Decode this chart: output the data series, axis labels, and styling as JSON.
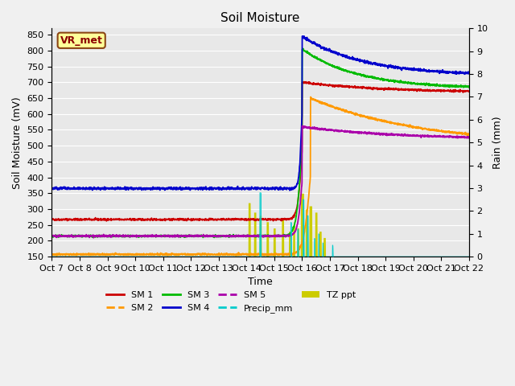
{
  "title": "Soil Moisture",
  "xlabel": "Time",
  "ylabel_left": "Soil Moisture (mV)",
  "ylabel_right": "Rain (mm)",
  "ylim_left": [
    150,
    870
  ],
  "ylim_right": [
    0.0,
    10.0
  ],
  "yticks_left": [
    150,
    200,
    250,
    300,
    350,
    400,
    450,
    500,
    550,
    600,
    650,
    700,
    750,
    800,
    850
  ],
  "yticks_right": [
    0.0,
    1.0,
    2.0,
    3.0,
    4.0,
    5.0,
    6.0,
    7.0,
    8.0,
    9.0,
    10.0
  ],
  "xtick_labels": [
    "Oct 7",
    "Oct 8",
    "Oct 9",
    "Oct 10",
    "Oct 11",
    "Oct 12",
    "Oct 13",
    "Oct 14",
    "Oct 15",
    "Oct 16",
    "Oct 17",
    "Oct 18",
    "Oct 19",
    "Oct 20",
    "Oct 21",
    "Oct 22"
  ],
  "bg_color": "#e8e8e8",
  "grid_color": "#ffffff",
  "annotation_text": "VR_met",
  "annotation_box_color": "#ffff99",
  "annotation_border_color": "#8B4513",
  "series_colors": {
    "SM1": "#cc0000",
    "SM2": "#ff9900",
    "SM3": "#00bb00",
    "SM4": "#0000cc",
    "SM5": "#aa00aa",
    "Precip_mm": "#00cccc",
    "TZ_ppt": "#cccc00"
  }
}
